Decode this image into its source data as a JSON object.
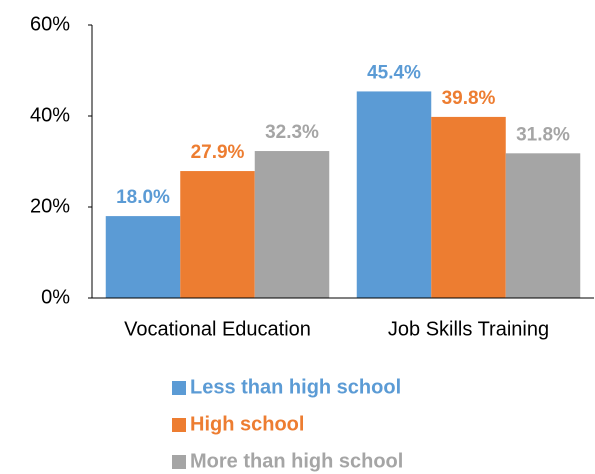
{
  "chart_data": {
    "type": "bar",
    "categories": [
      "Vocational Education",
      "Job Skills Training"
    ],
    "series": [
      {
        "name": "Less than high school",
        "color": "#5b9bd5",
        "values": [
          18.0,
          45.4
        ],
        "value_labels": [
          "18.0%",
          "45.4%"
        ]
      },
      {
        "name": "High school",
        "color": "#ed7d31",
        "values": [
          27.9,
          39.8
        ],
        "value_labels": [
          "27.9%",
          "39.8%"
        ]
      },
      {
        "name": "More than high school",
        "color": "#a5a5a5",
        "values": [
          32.3,
          31.8
        ],
        "value_labels": [
          "32.3%",
          "31.8%"
        ]
      }
    ],
    "ylim": [
      0,
      60
    ],
    "yticks": [
      {
        "value": 0,
        "label": "0%"
      },
      {
        "value": 20,
        "label": "20%"
      },
      {
        "value": 40,
        "label": "40%"
      },
      {
        "value": 60,
        "label": "60%"
      }
    ],
    "grid": false,
    "legend": "bottom"
  }
}
